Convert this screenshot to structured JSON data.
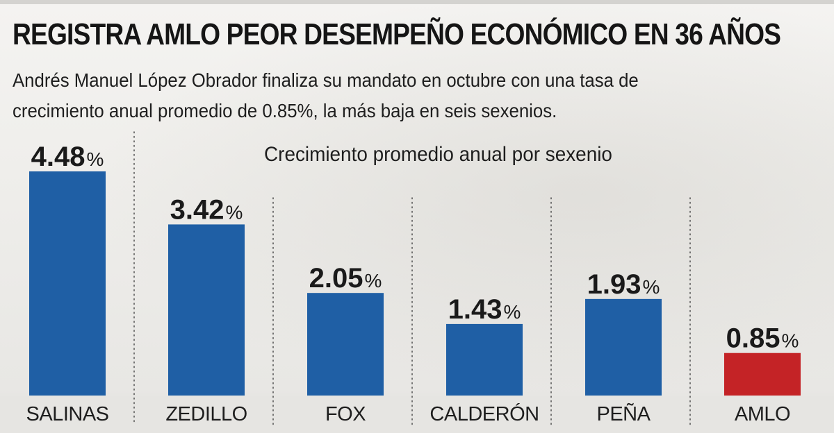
{
  "header": {
    "title": "REGISTRA AMLO PEOR DESEMPEÑO ECONÓMICO EN 36 AÑOS",
    "subtitle": "Andrés Manuel López Obrador finaliza su mandato en octubre con una tasa de crecimiento anual promedio de 0.85%, la más baja en seis sexenios."
  },
  "chart_data": {
    "type": "bar",
    "title": "Crecimiento promedio anual por sexenio",
    "categories": [
      "SALINAS",
      "ZEDILLO",
      "FOX",
      "CALDERÓN",
      "PEÑA",
      "AMLO"
    ],
    "values": [
      4.48,
      3.42,
      2.05,
      1.43,
      1.93,
      0.85
    ],
    "value_labels": [
      "4.48",
      "3.42",
      "2.05",
      "1.43",
      "1.93",
      "0.85"
    ],
    "unit": "%",
    "bar_colors": [
      "#1f5fa5",
      "#1f5fa5",
      "#1f5fa5",
      "#1f5fa5",
      "#1f5fa5",
      "#c42326"
    ],
    "ylim": [
      0,
      4.48
    ],
    "grid": false,
    "separators": "dotted-vertical"
  }
}
